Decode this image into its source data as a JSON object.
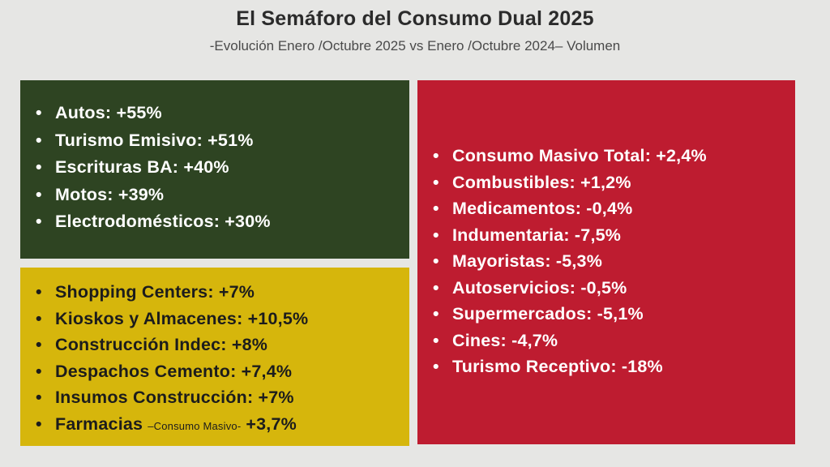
{
  "header": {
    "title": "El Semáforo del Consumo Dual 2025",
    "subtitle": "-Evolución Enero /Octubre 2025 vs Enero /Octubre 2024– Volumen"
  },
  "bullet": "•",
  "colors": {
    "background": "#e6e6e4",
    "green_panel": "#2e4422",
    "yellow_panel": "#d6b60c",
    "red_panel": "#be1c30"
  },
  "green_panel": {
    "items": [
      "Autos: +55%",
      "Turismo Emisivo: +51%",
      "Escrituras BA: +40%",
      "Motos: +39%",
      "Electrodomésticos: +30%"
    ]
  },
  "yellow_panel": {
    "items": [
      "Shopping Centers: +7%",
      "Kioskos y Almacenes: +10,5%",
      "Construcción Indec: +8%",
      "Despachos Cemento: +7,4%",
      "Insumos Construcción: +7%"
    ],
    "last_item": {
      "label": "Farmacias",
      "note": "–Consumo Masivo-",
      "value": "+3,7%"
    }
  },
  "red_panel": {
    "items": [
      "Consumo Masivo Total: +2,4%",
      "Combustibles: +1,2%",
      "Medicamentos: -0,4%",
      "Indumentaria: -7,5%",
      "Mayoristas: -5,3%",
      "Autoservicios: -0,5%",
      "Supermercados: -5,1%",
      "Cines: -4,7%",
      "Turismo Receptivo: -18%"
    ]
  }
}
